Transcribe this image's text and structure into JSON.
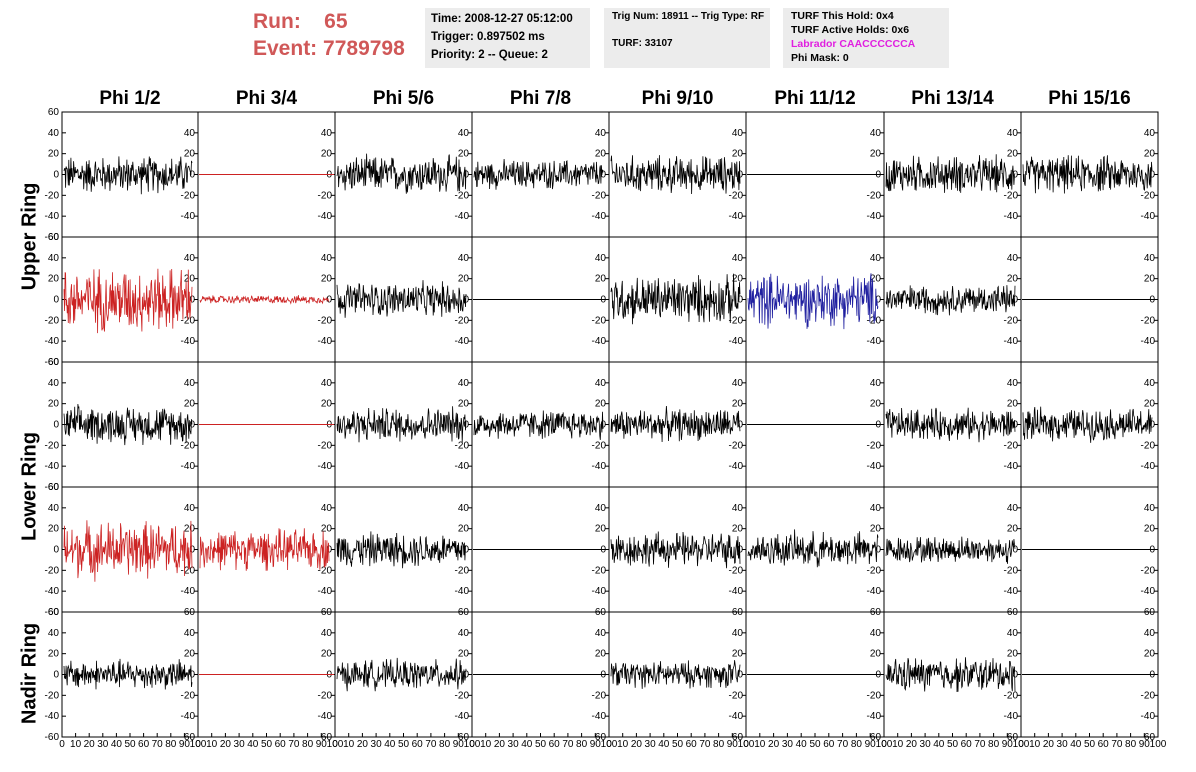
{
  "header": {
    "run_label": "Run:",
    "run_value": "65",
    "event_label": "Event:",
    "event_value": "7789798"
  },
  "info_box_1": {
    "time": "Time: 2008-12-27 05:12:00",
    "trigger": "Trigger: 0.897502 ms",
    "priority": "Priority: 2 -- Queue: 2"
  },
  "info_box_2": {
    "trig": "Trig Num: 18911 -- Trig Type: RF",
    "turf": "TURF: 33107"
  },
  "info_box_3": {
    "this_hold": "TURF This Hold: 0x4",
    "active_holds": "TURF Active Holds: 0x6",
    "labrador": "Labrador CAACCCCCCA",
    "phi_mask": "Phi Mask: 0"
  },
  "columns": [
    "Phi 1/2",
    "Phi 3/4",
    "Phi 5/6",
    "Phi 7/8",
    "Phi 9/10",
    "Phi 11/12",
    "Phi 13/14",
    "Phi 15/16"
  ],
  "rows": [
    "Upper Ring",
    "Lower Ring",
    "Nadir Ring"
  ],
  "chart_data": {
    "type": "line",
    "y_ticks": [
      "60",
      "40",
      "20",
      "0",
      "-20",
      "-40",
      "-60"
    ],
    "x_ticks": [
      "0",
      "10",
      "20",
      "30",
      "40",
      "50",
      "60",
      "70",
      "80",
      "90",
      "100"
    ],
    "ylim": [
      -60,
      60
    ],
    "xlim": [
      0,
      100
    ],
    "panel_colors": [
      [
        "black",
        "red",
        "black",
        "black",
        "black",
        "black",
        "black",
        "black"
      ],
      [
        "red",
        "red",
        "black",
        "black",
        "black",
        "blue",
        "black",
        "black"
      ],
      [
        "black",
        "red",
        "black",
        "black",
        "black",
        "black",
        "black",
        "black"
      ],
      [
        "red",
        "red",
        "black",
        "black",
        "black",
        "black",
        "black",
        "black"
      ],
      [
        "black",
        "red",
        "black",
        "black",
        "black",
        "black",
        "black",
        "black"
      ]
    ],
    "panel_amplitude": [
      [
        14,
        0,
        14,
        11,
        14,
        0,
        14,
        14
      ],
      [
        24,
        3,
        13,
        0,
        18,
        20,
        11,
        0
      ],
      [
        14,
        0,
        13,
        11,
        12,
        0,
        12,
        12
      ],
      [
        21,
        15,
        13,
        0,
        13,
        13,
        10,
        0
      ],
      [
        11,
        0,
        11,
        0,
        10,
        0,
        13,
        0
      ]
    ],
    "colors": {
      "black": "#000000",
      "red": "#cc2222",
      "blue": "#2020a0"
    }
  }
}
